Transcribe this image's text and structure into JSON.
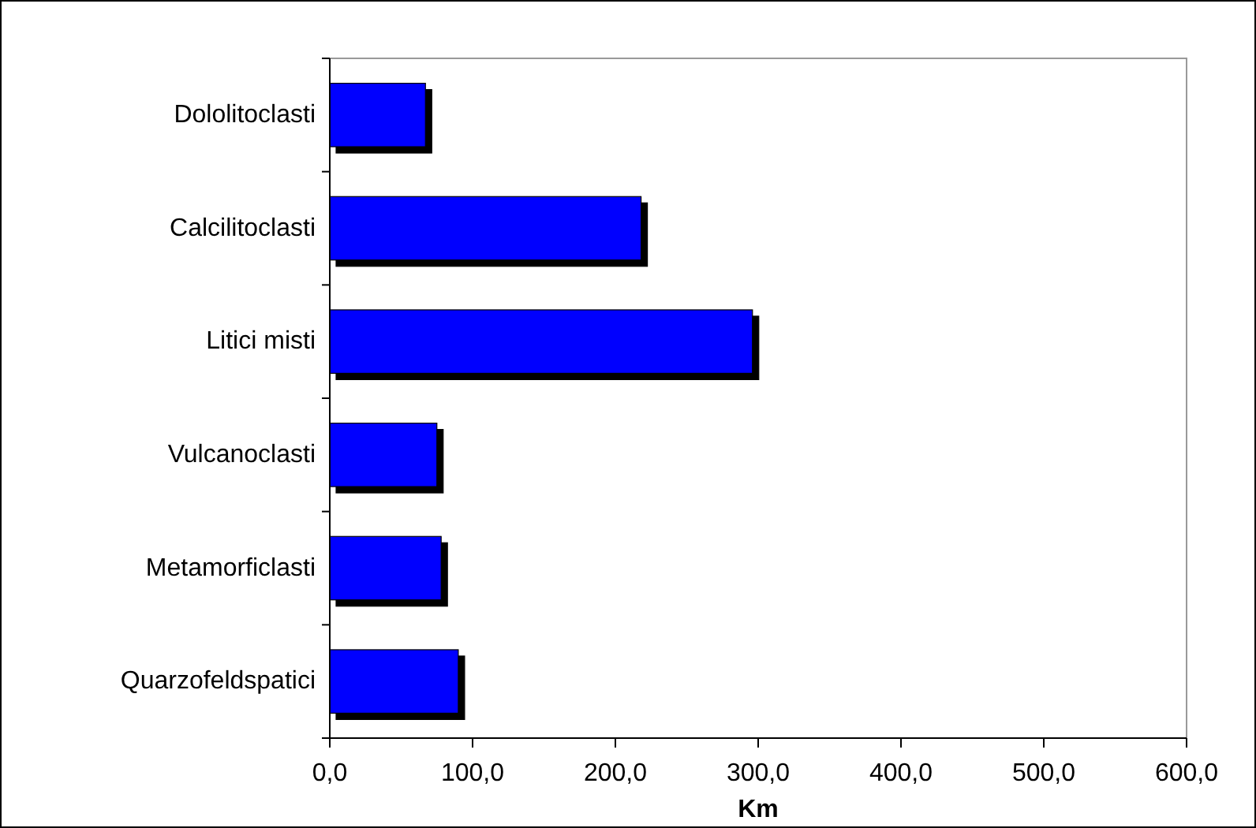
{
  "chart_data": {
    "type": "bar",
    "orientation": "horizontal",
    "xlabel": "Km",
    "categories": [
      "Dololitoclasti",
      "Calcilitoclasti",
      "Litici misti",
      "Vulcanoclasti",
      "Metamorficlasti",
      "Quarzofeldspatici"
    ],
    "values": [
      67,
      218,
      296,
      75,
      78,
      90
    ],
    "color": "#0000ff",
    "xlim": [
      0,
      600
    ],
    "xticks": [
      {
        "value": 0,
        "label": "0,0"
      },
      {
        "value": 100,
        "label": "100,0"
      },
      {
        "value": 200,
        "label": "200,0"
      },
      {
        "value": 300,
        "label": "300,0"
      },
      {
        "value": 400,
        "label": "400,0"
      },
      {
        "value": 500,
        "label": "500,0"
      },
      {
        "value": 600,
        "label": "600,0"
      }
    ],
    "grid": false
  }
}
